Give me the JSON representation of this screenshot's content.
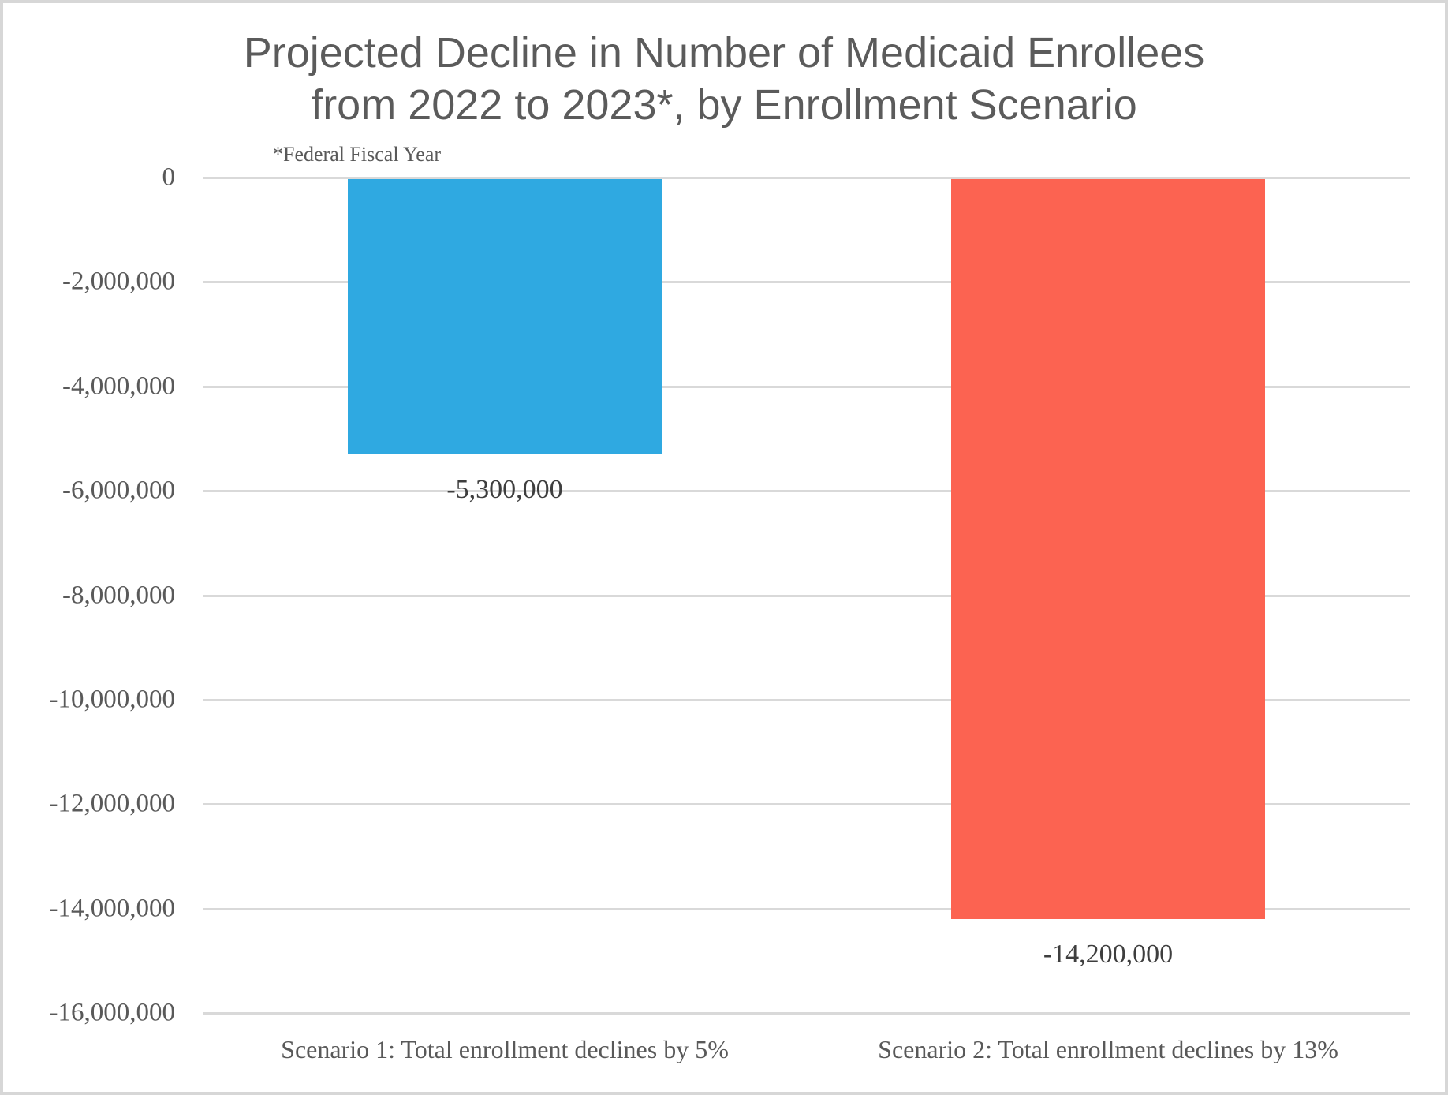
{
  "chart_data": {
    "type": "bar",
    "title": "Projected Decline in Number of Medicaid Enrollees from 2022 to 2023*, by Enrollment Scenario",
    "title_lines": [
      "Projected Decline in Number of Medicaid Enrollees",
      "from 2022 to 2023*, by Enrollment Scenario"
    ],
    "footnote": "*Federal Fiscal Year",
    "categories": [
      "Scenario 1: Total enrollment declines by 5%",
      "Scenario 2: Total enrollment declines by 13%"
    ],
    "values": [
      -5300000,
      -14200000
    ],
    "data_labels": [
      "-5,300,000",
      "-14,200,000"
    ],
    "bar_colors": [
      "#2fa9e1",
      "#fc6351"
    ],
    "xlabel": "",
    "ylabel": "",
    "ylim": [
      -16000000,
      0
    ],
    "yticks": [
      {
        "value": 0,
        "label": "0"
      },
      {
        "value": -2000000,
        "label": "-2,000,000"
      },
      {
        "value": -4000000,
        "label": "-4,000,000"
      },
      {
        "value": -6000000,
        "label": "-6,000,000"
      },
      {
        "value": -8000000,
        "label": "-8,000,000"
      },
      {
        "value": -10000000,
        "label": "-10,000,000"
      },
      {
        "value": -12000000,
        "label": "-12,000,000"
      },
      {
        "value": -14000000,
        "label": "-14,000,000"
      },
      {
        "value": -16000000,
        "label": "-16,000,000"
      }
    ],
    "grid": true,
    "legend_position": "none"
  },
  "colors": {
    "title_text": "#5b5b5b",
    "axis_text": "#595959",
    "data_label_text": "#3e3e3e",
    "gridline": "#d9d9d9",
    "border": "#d7d7d7",
    "background": "#ffffff"
  }
}
